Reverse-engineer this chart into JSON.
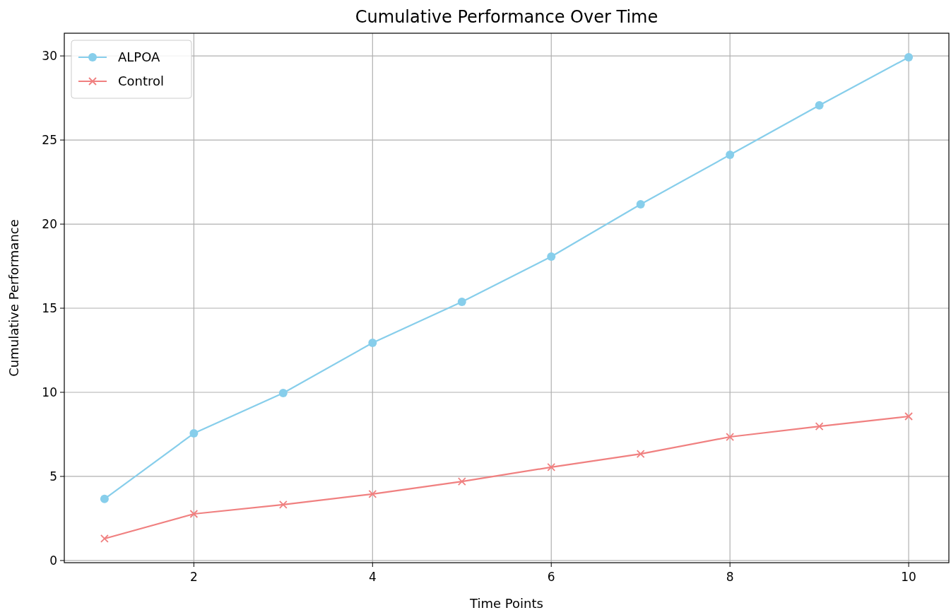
{
  "chart_data": {
    "type": "line",
    "title": "Cumulative Performance Over Time",
    "xlabel": "Time Points",
    "ylabel": "Cumulative Performance",
    "x": [
      1,
      2,
      3,
      4,
      5,
      6,
      7,
      8,
      9,
      10
    ],
    "series": [
      {
        "name": "ALPOA",
        "color": "#87ceeb",
        "marker": "circle",
        "values": [
          3.66,
          7.56,
          9.96,
          12.94,
          15.38,
          18.07,
          21.18,
          24.12,
          27.06,
          29.92
        ]
      },
      {
        "name": "Control",
        "color": "#f08080",
        "marker": "cross",
        "values": [
          1.3,
          2.77,
          3.32,
          3.95,
          4.7,
          5.55,
          6.34,
          7.35,
          7.98,
          8.57
        ]
      }
    ],
    "xlim": [
      0.55,
      10.45
    ],
    "xticks": [
      2,
      4,
      6,
      8,
      10
    ],
    "ylim": [
      -0.13,
      31.35
    ],
    "yticks": [
      0,
      5,
      10,
      15,
      20,
      25,
      30
    ],
    "grid": true,
    "legend": "top left",
    "line_style": "solid"
  }
}
